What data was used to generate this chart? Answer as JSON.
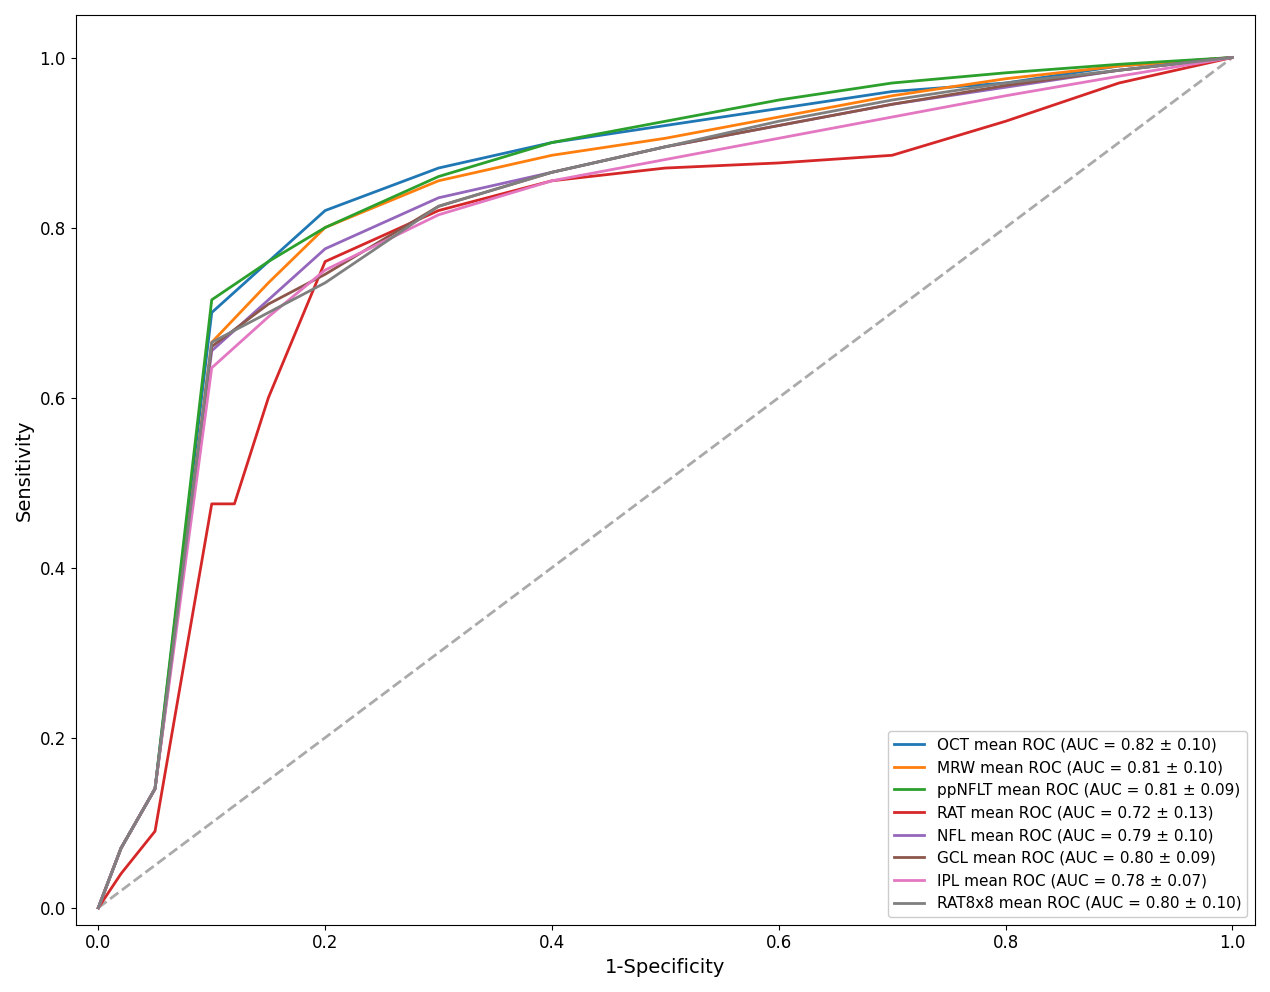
{
  "curves": {
    "OCT": {
      "color": "#1f77b4",
      "label": "OCT mean ROC (AUC = 0.82 ± 0.10)",
      "points": [
        [
          0,
          0
        ],
        [
          0.02,
          0.07
        ],
        [
          0.05,
          0.14
        ],
        [
          0.1,
          0.7
        ],
        [
          0.15,
          0.76
        ],
        [
          0.2,
          0.82
        ],
        [
          0.3,
          0.87
        ],
        [
          0.4,
          0.9
        ],
        [
          0.5,
          0.92
        ],
        [
          0.6,
          0.94
        ],
        [
          0.7,
          0.96
        ],
        [
          0.8,
          0.97
        ],
        [
          0.9,
          0.99
        ],
        [
          1.0,
          1.0
        ]
      ]
    },
    "MRW": {
      "color": "#ff7f0e",
      "label": "MRW mean ROC (AUC = 0.81 ± 0.10)",
      "points": [
        [
          0,
          0
        ],
        [
          0.02,
          0.07
        ],
        [
          0.05,
          0.14
        ],
        [
          0.1,
          0.665
        ],
        [
          0.15,
          0.735
        ],
        [
          0.2,
          0.8
        ],
        [
          0.3,
          0.855
        ],
        [
          0.4,
          0.885
        ],
        [
          0.5,
          0.905
        ],
        [
          0.6,
          0.93
        ],
        [
          0.7,
          0.955
        ],
        [
          0.8,
          0.975
        ],
        [
          0.9,
          0.99
        ],
        [
          1.0,
          1.0
        ]
      ]
    },
    "ppNFLT": {
      "color": "#2ca02c",
      "label": "ppNFLT mean ROC (AUC = 0.81 ± 0.09)",
      "points": [
        [
          0,
          0
        ],
        [
          0.02,
          0.07
        ],
        [
          0.05,
          0.14
        ],
        [
          0.1,
          0.715
        ],
        [
          0.15,
          0.76
        ],
        [
          0.2,
          0.8
        ],
        [
          0.3,
          0.86
        ],
        [
          0.4,
          0.9
        ],
        [
          0.5,
          0.925
        ],
        [
          0.6,
          0.95
        ],
        [
          0.7,
          0.97
        ],
        [
          0.8,
          0.982
        ],
        [
          0.9,
          0.992
        ],
        [
          1.0,
          1.0
        ]
      ]
    },
    "RAT": {
      "color": "#d62728",
      "label": "RAT mean ROC (AUC = 0.72 ± 0.13)",
      "points": [
        [
          0,
          0
        ],
        [
          0.02,
          0.04
        ],
        [
          0.05,
          0.09
        ],
        [
          0.1,
          0.475
        ],
        [
          0.12,
          0.475
        ],
        [
          0.15,
          0.6
        ],
        [
          0.2,
          0.76
        ],
        [
          0.3,
          0.82
        ],
        [
          0.4,
          0.855
        ],
        [
          0.5,
          0.87
        ],
        [
          0.6,
          0.876
        ],
        [
          0.7,
          0.885
        ],
        [
          0.8,
          0.925
        ],
        [
          0.9,
          0.97
        ],
        [
          1.0,
          1.0
        ]
      ]
    },
    "NFL": {
      "color": "#9467bd",
      "label": "NFL mean ROC (AUC = 0.79 ± 0.10)",
      "points": [
        [
          0,
          0
        ],
        [
          0.02,
          0.07
        ],
        [
          0.05,
          0.14
        ],
        [
          0.1,
          0.655
        ],
        [
          0.15,
          0.715
        ],
        [
          0.2,
          0.775
        ],
        [
          0.3,
          0.835
        ],
        [
          0.4,
          0.865
        ],
        [
          0.5,
          0.895
        ],
        [
          0.6,
          0.92
        ],
        [
          0.7,
          0.945
        ],
        [
          0.8,
          0.965
        ],
        [
          0.9,
          0.985
        ],
        [
          1.0,
          1.0
        ]
      ]
    },
    "GCL": {
      "color": "#8c564b",
      "label": "GCL mean ROC (AUC = 0.80 ± 0.09)",
      "points": [
        [
          0,
          0
        ],
        [
          0.02,
          0.07
        ],
        [
          0.05,
          0.14
        ],
        [
          0.1,
          0.66
        ],
        [
          0.15,
          0.71
        ],
        [
          0.2,
          0.745
        ],
        [
          0.3,
          0.825
        ],
        [
          0.4,
          0.865
        ],
        [
          0.5,
          0.895
        ],
        [
          0.6,
          0.92
        ],
        [
          0.7,
          0.945
        ],
        [
          0.8,
          0.967
        ],
        [
          0.9,
          0.985
        ],
        [
          1.0,
          1.0
        ]
      ]
    },
    "IPL": {
      "color": "#e377c2",
      "label": "IPL mean ROC (AUC = 0.78 ± 0.07)",
      "points": [
        [
          0,
          0
        ],
        [
          0.02,
          0.07
        ],
        [
          0.05,
          0.14
        ],
        [
          0.1,
          0.635
        ],
        [
          0.15,
          0.695
        ],
        [
          0.2,
          0.75
        ],
        [
          0.3,
          0.815
        ],
        [
          0.4,
          0.855
        ],
        [
          0.5,
          0.88
        ],
        [
          0.6,
          0.905
        ],
        [
          0.7,
          0.93
        ],
        [
          0.8,
          0.955
        ],
        [
          0.9,
          0.978
        ],
        [
          1.0,
          1.0
        ]
      ]
    },
    "RAT8x8": {
      "color": "#7f7f7f",
      "label": "RAT8x8 mean ROC (AUC = 0.80 ± 0.10)",
      "points": [
        [
          0,
          0
        ],
        [
          0.02,
          0.07
        ],
        [
          0.05,
          0.14
        ],
        [
          0.1,
          0.665
        ],
        [
          0.15,
          0.7
        ],
        [
          0.2,
          0.735
        ],
        [
          0.3,
          0.825
        ],
        [
          0.4,
          0.865
        ],
        [
          0.5,
          0.895
        ],
        [
          0.6,
          0.925
        ],
        [
          0.7,
          0.95
        ],
        [
          0.8,
          0.97
        ],
        [
          0.9,
          0.985
        ],
        [
          1.0,
          1.0
        ]
      ]
    }
  },
  "xlabel": "1-Specificity",
  "ylabel": "Sensitivity",
  "xlim": [
    -0.02,
    1.02
  ],
  "ylim": [
    -0.02,
    1.05
  ],
  "legend_loc": "lower right",
  "diagonal_color": "#aaaaaa",
  "linewidth": 2.0,
  "curve_order": [
    "OCT",
    "MRW",
    "ppNFLT",
    "RAT",
    "NFL",
    "GCL",
    "IPL",
    "RAT8x8"
  ],
  "xticks": [
    0.0,
    0.2,
    0.4,
    0.6,
    0.8,
    1.0
  ],
  "yticks": [
    0.0,
    0.2,
    0.4,
    0.6,
    0.8,
    1.0
  ],
  "tick_fontsize": 12,
  "label_fontsize": 14,
  "legend_fontsize": 11
}
